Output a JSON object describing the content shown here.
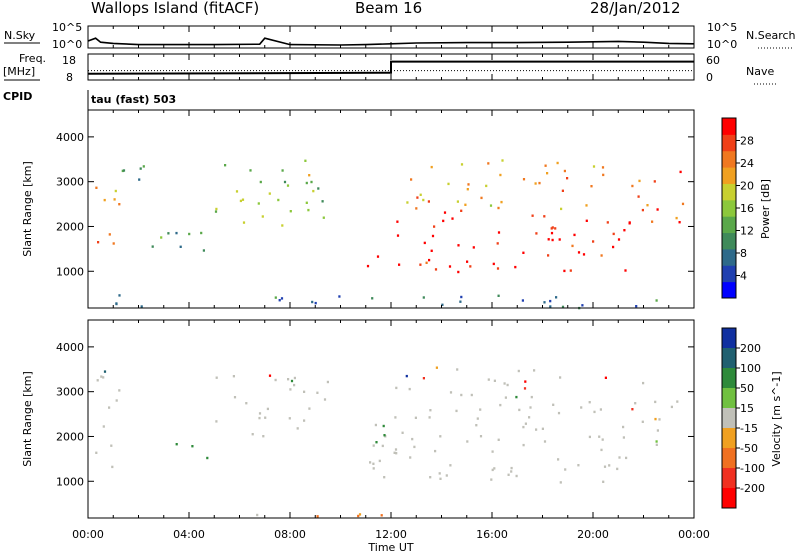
{
  "header": {
    "site": "Wallops Island (fitACF)",
    "beam": "Beam 16",
    "date": "28/Jan/2012"
  },
  "strip": {
    "nsky_label": "N.Sky",
    "nsky_ticks": [
      "10^5",
      "10^0"
    ],
    "nsearch_label": "N.Search",
    "nsearch_ticks": [
      "10^5",
      "10^0"
    ],
    "freq_label_1": "Freq.",
    "freq_label_2": "[MHz]",
    "freq_ticks": [
      "18",
      "8"
    ],
    "nave_label": "Nave",
    "nave_ticks": [
      "60",
      "0"
    ],
    "cpid_label": "CPID",
    "cpid_value": "tau (fast) 503"
  },
  "time_ticks": [
    "00:00",
    "04:00",
    "08:00",
    "12:00",
    "16:00",
    "20:00",
    "00:00"
  ],
  "x_axis_label": "Time UT",
  "colors": {
    "power": [
      "#0000ff",
      "#2040b0",
      "#2e6a8a",
      "#3f8a5a",
      "#5aa84a",
      "#8cc83c",
      "#c8d030",
      "#f0a020",
      "#f07820",
      "#f04018",
      "#ff0000"
    ],
    "velocity": [
      "#1030a0",
      "#206070",
      "#2e8a3a",
      "#70c040",
      "#c0c0b8",
      "#f0a020",
      "#f07020",
      "#f03020",
      "#ff0000"
    ]
  },
  "chart_data": [
    {
      "type": "line",
      "name": "N.Sky / N.Search",
      "x_range_hours": [
        0,
        24
      ],
      "ylim_log10": [
        0,
        5
      ],
      "x": [
        0,
        0.3,
        0.5,
        1,
        2,
        3,
        5,
        6.8,
        7,
        8,
        10,
        11,
        12,
        13,
        15,
        17,
        19,
        20,
        21,
        22,
        23,
        24
      ],
      "y": [
        1.5,
        2.2,
        1.2,
        0.9,
        0.6,
        0.6,
        0.6,
        0.7,
        2.2,
        0.6,
        0.5,
        0.6,
        0.8,
        1.0,
        1.1,
        1.1,
        1.2,
        1.3,
        1.4,
        1.2,
        0.9,
        0.8
      ]
    },
    {
      "type": "line",
      "name": "Freq / Nave",
      "x_range_hours": [
        0,
        24
      ],
      "series": [
        {
          "name": "Freq",
          "x": [
            0,
            12,
            12,
            24
          ],
          "y": [
            10.5,
            11,
            16.3,
            16.3
          ]
        },
        {
          "name": "Nave",
          "x": [
            0,
            24
          ],
          "y": [
            12,
            12
          ]
        }
      ]
    },
    {
      "type": "heatmap",
      "name": "Power",
      "xlabel": "Time UT",
      "ylabel": "Slant Range [km]",
      "x_range_hours": [
        0,
        24
      ],
      "ylim": [
        180,
        4600
      ],
      "y_ticks": [
        1000,
        2000,
        3000,
        4000
      ],
      "colorbar_label": "Power [dB]",
      "colorbar_ticks": [
        4,
        8,
        12,
        16,
        20,
        24,
        28
      ],
      "colorbar_range": [
        0,
        32
      ],
      "regions": [
        {
          "t0": 0.1,
          "t1": 1.2,
          "r0": 1300,
          "r1": 3100,
          "level": 24
        },
        {
          "t0": 1.0,
          "t1": 2.2,
          "r0": 2900,
          "r1": 3900,
          "level": 10
        },
        {
          "t0": 5.0,
          "t1": 9.5,
          "r0": 1900,
          "r1": 3500,
          "level": 16
        },
        {
          "t0": 2.5,
          "t1": 5.5,
          "r0": 1400,
          "r1": 2100,
          "level": 10
        },
        {
          "t0": 11.0,
          "t1": 21.5,
          "r0": 1000,
          "r1": 2400,
          "level": 30
        },
        {
          "t0": 12.5,
          "t1": 20.5,
          "r0": 2400,
          "r1": 3600,
          "level": 22
        },
        {
          "t0": 21.5,
          "t1": 23.6,
          "r0": 1800,
          "r1": 3300,
          "level": 26
        },
        {
          "t0": 0.5,
          "t1": 23.0,
          "r0": 200,
          "r1": 500,
          "level": 8
        }
      ]
    },
    {
      "type": "heatmap",
      "name": "Velocity",
      "xlabel": "Time UT",
      "ylabel": "Slant Range [km]",
      "x_range_hours": [
        0,
        24
      ],
      "ylim": [
        180,
        4600
      ],
      "y_ticks": [
        1000,
        2000,
        3000,
        4000
      ],
      "colorbar_label": "Velocity [m s^-1]",
      "colorbar_ticks": [
        200,
        100,
        50,
        15,
        -15,
        -50,
        -100,
        -200
      ],
      "regions": [
        {
          "t0": 0.1,
          "t1": 1.2,
          "r0": 1300,
          "r1": 3600,
          "level": 0
        },
        {
          "t0": 0.5,
          "t1": 1.0,
          "r0": 3100,
          "r1": 3500,
          "level": 80
        },
        {
          "t0": 5.0,
          "t1": 9.5,
          "r0": 1900,
          "r1": 3400,
          "level": 0
        },
        {
          "t0": 3.0,
          "t1": 5.0,
          "r0": 1500,
          "r1": 1900,
          "level": 50
        },
        {
          "t0": 11.0,
          "t1": 21.5,
          "r0": 1000,
          "r1": 2400,
          "level": 0
        },
        {
          "t0": 12.0,
          "t1": 20.5,
          "r0": 2400,
          "r1": 3600,
          "level": 0
        },
        {
          "t0": 21.5,
          "t1": 23.6,
          "r0": 1800,
          "r1": 3300,
          "level": 0
        },
        {
          "t0": 11.2,
          "t1": 12.1,
          "r0": 1600,
          "r1": 2400,
          "level": 60
        },
        {
          "t0": 6.0,
          "t1": 12.0,
          "r0": 200,
          "r1": 400,
          "level": -30
        }
      ]
    }
  ]
}
